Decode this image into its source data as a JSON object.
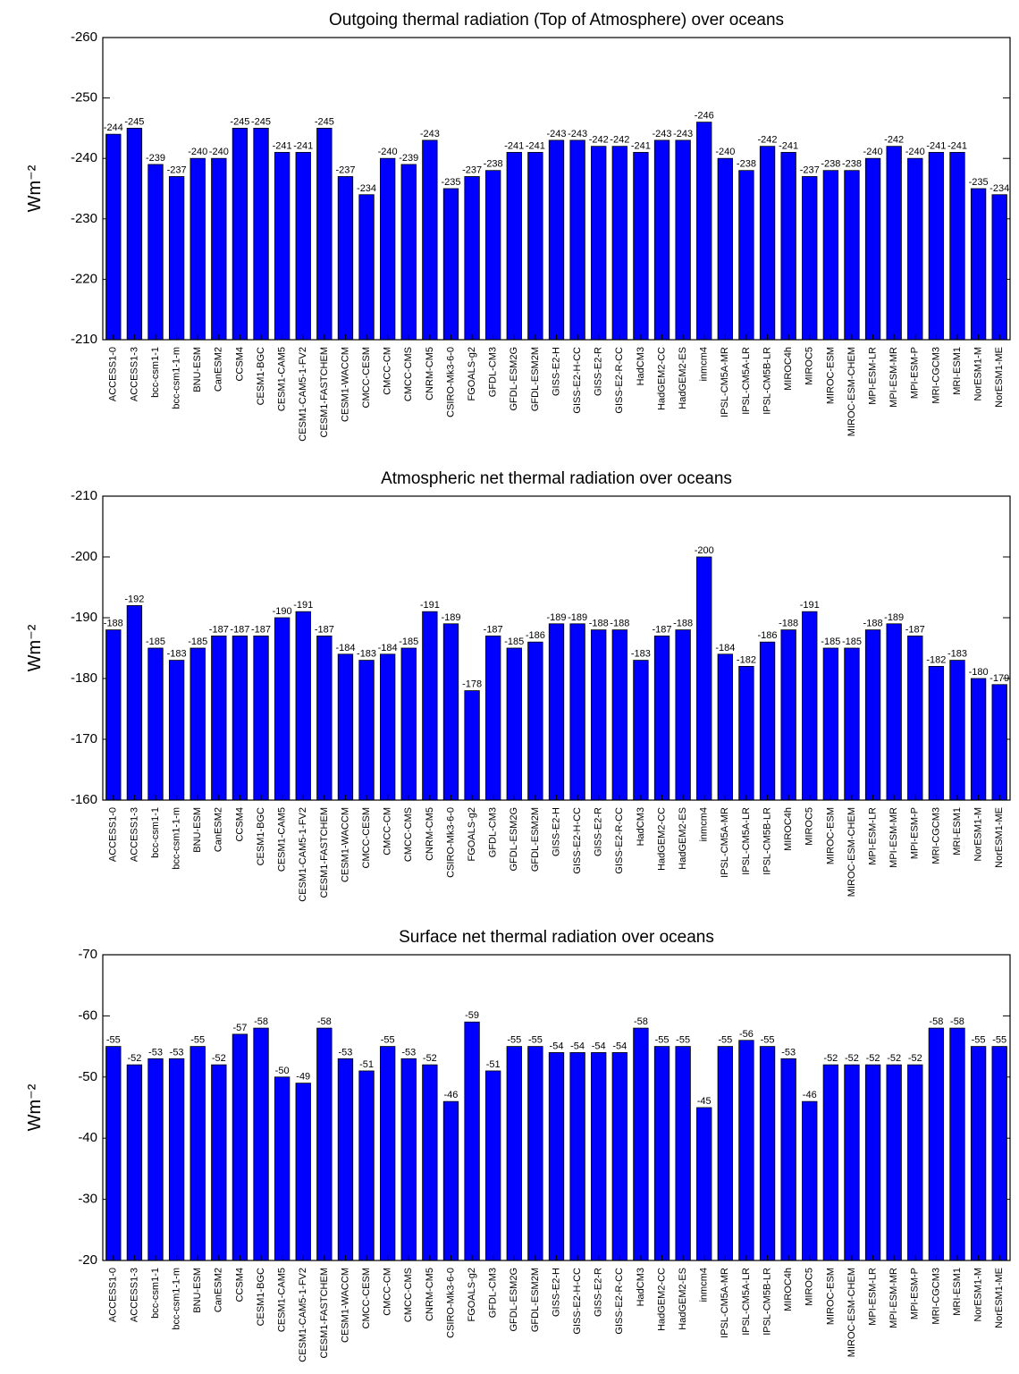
{
  "chart_data": [
    {
      "type": "bar",
      "title": "Outgoing thermal radiation (Top of Atmosphere) over oceans",
      "y_label": "Wm⁻²",
      "categories": [
        "ACCESS1-0",
        "ACCESS1-3",
        "bcc-csm1-1",
        "bcc-csm1-1-m",
        "BNU-ESM",
        "CanESM2",
        "CCSM4",
        "CESM1-BGC",
        "CESM1-CAM5",
        "CESM1-CAM5-1-FV2",
        "CESM1-FASTCHEM",
        "CESM1-WACCM",
        "CMCC-CESM",
        "CMCC-CM",
        "CMCC-CMS",
        "CNRM-CM5",
        "CSIRO-Mk3-6-0",
        "FGOALS-g2",
        "GFDL-CM3",
        "GFDL-ESM2G",
        "GFDL-ESM2M",
        "GISS-E2-H",
        "GISS-E2-H-CC",
        "GISS-E2-R",
        "GISS-E2-R-CC",
        "HadCM3",
        "HadGEM2-CC",
        "HadGEM2-ES",
        "inmcm4",
        "IPSL-CM5A-MR",
        "IPSL-CM5A-LR",
        "IPSL-CM5B-LR",
        "MIROC4h",
        "MIROC5",
        "MIROC-ESM",
        "MIROC-ESM-CHEM",
        "MPI-ESM-LR",
        "MPI-ESM-MR",
        "MPI-ESM-P",
        "MRI-CGCM3",
        "MRI-ESM1",
        "NorESM1-M",
        "NorESM1-ME"
      ],
      "values": [
        -244,
        -245,
        -239,
        -237,
        -240,
        -240,
        -245,
        -245,
        -241,
        -241,
        -245,
        -237,
        -234,
        -240,
        -239,
        -243,
        -235,
        -237,
        -238,
        -241,
        -241,
        -243,
        -243,
        -242,
        -242,
        -241,
        -243,
        -243,
        -246,
        -240,
        -238,
        -242,
        -241,
        -237,
        -238,
        -238,
        -240,
        -242,
        -240,
        -241,
        -241,
        -235,
        -234
      ],
      "color": "#0000ff",
      "ylim": [
        -210,
        -260
      ],
      "yticks": [
        -260,
        -250,
        -240,
        -230,
        -220,
        -210
      ]
    },
    {
      "type": "bar",
      "title": "Atmospheric net thermal radiation over oceans",
      "y_label": "Wm⁻²",
      "categories": [
        "ACCESS1-0",
        "ACCESS1-3",
        "bcc-csm1-1",
        "bcc-csm1-1-m",
        "BNU-ESM",
        "CanESM2",
        "CCSM4",
        "CESM1-BGC",
        "CESM1-CAM5",
        "CESM1-CAM5-1-FV2",
        "CESM1-FASTCHEM",
        "CESM1-WACCM",
        "CMCC-CESM",
        "CMCC-CM",
        "CMCC-CMS",
        "CNRM-CM5",
        "CSIRO-Mk3-6-0",
        "FGOALS-g2",
        "GFDL-CM3",
        "GFDL-ESM2G",
        "GFDL-ESM2M",
        "GISS-E2-H",
        "GISS-E2-H-CC",
        "GISS-E2-R",
        "GISS-E2-R-CC",
        "HadCM3",
        "HadGEM2-CC",
        "HadGEM2-ES",
        "inmcm4",
        "IPSL-CM5A-MR",
        "IPSL-CM5A-LR",
        "IPSL-CM5B-LR",
        "MIROC4h",
        "MIROC5",
        "MIROC-ESM",
        "MIROC-ESM-CHEM",
        "MPI-ESM-LR",
        "MPI-ESM-MR",
        "MPI-ESM-P",
        "MRI-CGCM3",
        "MRI-ESM1",
        "NorESM1-M",
        "NorESM1-ME"
      ],
      "values": [
        -188,
        -192,
        -185,
        -183,
        -185,
        -187,
        -187,
        -187,
        -190,
        -191,
        -187,
        -184,
        -183,
        -184,
        -185,
        -191,
        -189,
        -178,
        -187,
        -185,
        -186,
        -189,
        -189,
        -188,
        -188,
        -183,
        -187,
        -188,
        -200,
        -184,
        -182,
        -186,
        -188,
        -191,
        -185,
        -185,
        -188,
        -189,
        -187,
        -182,
        -183,
        -180,
        -179
      ],
      "color": "#0000ff",
      "ylim": [
        -160,
        -210
      ],
      "yticks": [
        -210,
        -200,
        -190,
        -180,
        -170,
        -160
      ]
    },
    {
      "type": "bar",
      "title": "Surface net thermal radiation over oceans",
      "y_label": "Wm⁻²",
      "categories": [
        "ACCESS1-0",
        "ACCESS1-3",
        "bcc-csm1-1",
        "bcc-csm1-1-m",
        "BNU-ESM",
        "CanESM2",
        "CCSM4",
        "CESM1-BGC",
        "CESM1-CAM5",
        "CESM1-CAM5-1-FV2",
        "CESM1-FASTCHEM",
        "CESM1-WACCM",
        "CMCC-CESM",
        "CMCC-CM",
        "CMCC-CMS",
        "CNRM-CM5",
        "CSIRO-Mk3-6-0",
        "FGOALS-g2",
        "GFDL-CM3",
        "GFDL-ESM2G",
        "GFDL-ESM2M",
        "GISS-E2-H",
        "GISS-E2-H-CC",
        "GISS-E2-R",
        "GISS-E2-R-CC",
        "HadCM3",
        "HadGEM2-CC",
        "HadGEM2-ES",
        "inmcm4",
        "IPSL-CM5A-MR",
        "IPSL-CM5A-LR",
        "IPSL-CM5B-LR",
        "MIROC4h",
        "MIROC5",
        "MIROC-ESM",
        "MIROC-ESM-CHEM",
        "MPI-ESM-LR",
        "MPI-ESM-MR",
        "MPI-ESM-P",
        "MRI-CGCM3",
        "MRI-ESM1",
        "NorESM1-M",
        "NorESM1-ME"
      ],
      "values": [
        -55,
        -52,
        -53,
        -53,
        -55,
        -52,
        -57,
        -58,
        -50,
        -49,
        -58,
        -53,
        -51,
        -55,
        -53,
        -52,
        -46,
        -59,
        -51,
        -55,
        -55,
        -54,
        -54,
        -54,
        -54,
        -58,
        -55,
        -55,
        -45,
        -55,
        -56,
        -55,
        -53,
        -46,
        -52,
        -52,
        -52,
        -52,
        -52,
        -58,
        -58,
        -55,
        -55
      ],
      "color": "#0000ff",
      "ylim": [
        -20,
        -70
      ],
      "yticks": [
        -70,
        -60,
        -50,
        -40,
        -30,
        -20
      ]
    }
  ]
}
